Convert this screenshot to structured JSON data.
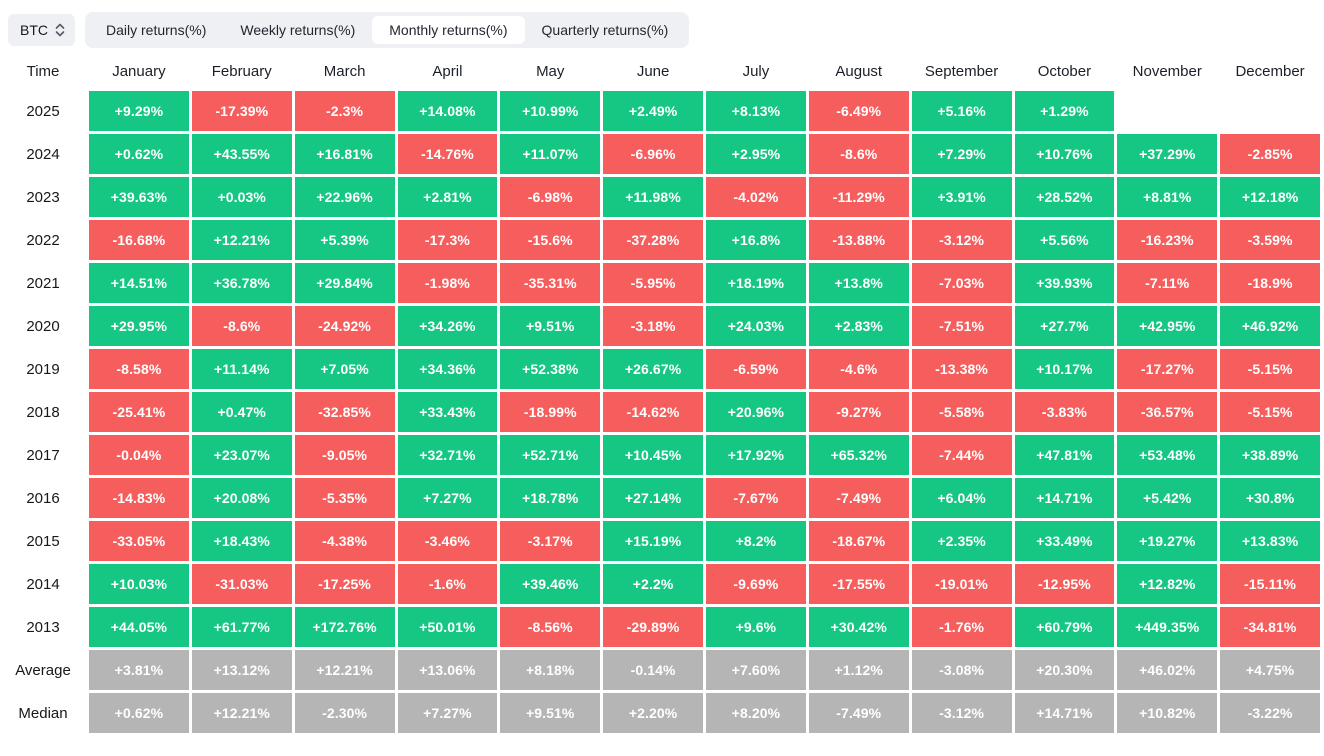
{
  "controls": {
    "symbol_select": {
      "value": "BTC"
    },
    "tabs": [
      "Daily returns(%)",
      "Weekly returns(%)",
      "Monthly returns(%)",
      "Quarterly returns(%)"
    ],
    "active_tab": "Monthly returns(%)"
  },
  "colors": {
    "positive": "#16c784",
    "negative": "#f65e5e",
    "summary": "#b5b5b5",
    "tab_bg": "#eef0f3",
    "text_dark": "#1b1f27"
  },
  "chart_data": {
    "type": "heatmap",
    "title": "Monthly returns(%)",
    "time_header": "Time",
    "columns": [
      "January",
      "February",
      "March",
      "April",
      "May",
      "June",
      "July",
      "August",
      "September",
      "October",
      "November",
      "December"
    ],
    "rows": [
      {
        "label": "2025",
        "type": "year",
        "values": [
          "+9.29%",
          "-17.39%",
          "-2.3%",
          "+14.08%",
          "+10.99%",
          "+2.49%",
          "+8.13%",
          "-6.49%",
          "+5.16%",
          "+1.29%",
          null,
          null
        ]
      },
      {
        "label": "2024",
        "type": "year",
        "values": [
          "+0.62%",
          "+43.55%",
          "+16.81%",
          "-14.76%",
          "+11.07%",
          "-6.96%",
          "+2.95%",
          "-8.6%",
          "+7.29%",
          "+10.76%",
          "+37.29%",
          "-2.85%"
        ]
      },
      {
        "label": "2023",
        "type": "year",
        "values": [
          "+39.63%",
          "+0.03%",
          "+22.96%",
          "+2.81%",
          "-6.98%",
          "+11.98%",
          "-4.02%",
          "-11.29%",
          "+3.91%",
          "+28.52%",
          "+8.81%",
          "+12.18%"
        ]
      },
      {
        "label": "2022",
        "type": "year",
        "values": [
          "-16.68%",
          "+12.21%",
          "+5.39%",
          "-17.3%",
          "-15.6%",
          "-37.28%",
          "+16.8%",
          "-13.88%",
          "-3.12%",
          "+5.56%",
          "-16.23%",
          "-3.59%"
        ]
      },
      {
        "label": "2021",
        "type": "year",
        "values": [
          "+14.51%",
          "+36.78%",
          "+29.84%",
          "-1.98%",
          "-35.31%",
          "-5.95%",
          "+18.19%",
          "+13.8%",
          "-7.03%",
          "+39.93%",
          "-7.11%",
          "-18.9%"
        ]
      },
      {
        "label": "2020",
        "type": "year",
        "values": [
          "+29.95%",
          "-8.6%",
          "-24.92%",
          "+34.26%",
          "+9.51%",
          "-3.18%",
          "+24.03%",
          "+2.83%",
          "-7.51%",
          "+27.7%",
          "+42.95%",
          "+46.92%"
        ]
      },
      {
        "label": "2019",
        "type": "year",
        "values": [
          "-8.58%",
          "+11.14%",
          "+7.05%",
          "+34.36%",
          "+52.38%",
          "+26.67%",
          "-6.59%",
          "-4.6%",
          "-13.38%",
          "+10.17%",
          "-17.27%",
          "-5.15%"
        ]
      },
      {
        "label": "2018",
        "type": "year",
        "values": [
          "-25.41%",
          "+0.47%",
          "-32.85%",
          "+33.43%",
          "-18.99%",
          "-14.62%",
          "+20.96%",
          "-9.27%",
          "-5.58%",
          "-3.83%",
          "-36.57%",
          "-5.15%"
        ]
      },
      {
        "label": "2017",
        "type": "year",
        "values": [
          "-0.04%",
          "+23.07%",
          "-9.05%",
          "+32.71%",
          "+52.71%",
          "+10.45%",
          "+17.92%",
          "+65.32%",
          "-7.44%",
          "+47.81%",
          "+53.48%",
          "+38.89%"
        ]
      },
      {
        "label": "2016",
        "type": "year",
        "values": [
          "-14.83%",
          "+20.08%",
          "-5.35%",
          "+7.27%",
          "+18.78%",
          "+27.14%",
          "-7.67%",
          "-7.49%",
          "+6.04%",
          "+14.71%",
          "+5.42%",
          "+30.8%"
        ]
      },
      {
        "label": "2015",
        "type": "year",
        "values": [
          "-33.05%",
          "+18.43%",
          "-4.38%",
          "-3.46%",
          "-3.17%",
          "+15.19%",
          "+8.2%",
          "-18.67%",
          "+2.35%",
          "+33.49%",
          "+19.27%",
          "+13.83%"
        ]
      },
      {
        "label": "2014",
        "type": "year",
        "values": [
          "+10.03%",
          "-31.03%",
          "-17.25%",
          "-1.6%",
          "+39.46%",
          "+2.2%",
          "-9.69%",
          "-17.55%",
          "-19.01%",
          "-12.95%",
          "+12.82%",
          "-15.11%"
        ]
      },
      {
        "label": "2013",
        "type": "year",
        "values": [
          "+44.05%",
          "+61.77%",
          "+172.76%",
          "+50.01%",
          "-8.56%",
          "-29.89%",
          "+9.6%",
          "+30.42%",
          "-1.76%",
          "+60.79%",
          "+449.35%",
          "-34.81%"
        ]
      },
      {
        "label": "Average",
        "type": "summary",
        "values": [
          "+3.81%",
          "+13.12%",
          "+12.21%",
          "+13.06%",
          "+8.18%",
          "-0.14%",
          "+7.60%",
          "+1.12%",
          "-3.08%",
          "+20.30%",
          "+46.02%",
          "+4.75%"
        ]
      },
      {
        "label": "Median",
        "type": "summary",
        "values": [
          "+0.62%",
          "+12.21%",
          "-2.30%",
          "+7.27%",
          "+9.51%",
          "+2.20%",
          "+8.20%",
          "-7.49%",
          "-3.12%",
          "+14.71%",
          "+10.82%",
          "-3.22%"
        ]
      }
    ]
  }
}
